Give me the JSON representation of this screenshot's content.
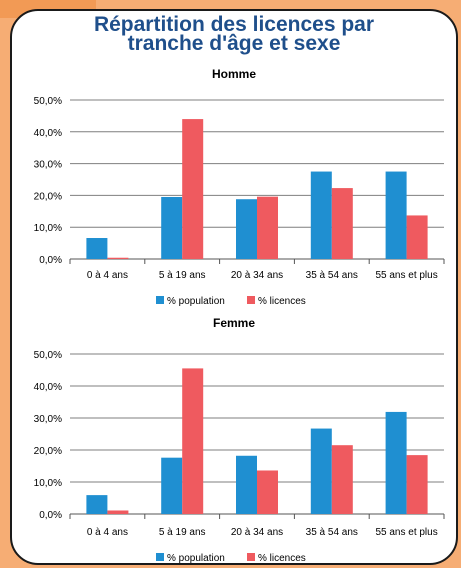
{
  "header": {
    "title_line1": "Répartition des licences par",
    "title_line2": "tranche d'âge et sexe"
  },
  "colors": {
    "population": "#1f8fd1",
    "licences": "#ef5a5f",
    "title": "#1f4f8b"
  },
  "chart_data": [
    {
      "type": "bar",
      "title": "Homme",
      "categories": [
        "0 à 4 ans",
        "5 à 19 ans",
        "20 à 34 ans",
        "35 à 54 ans",
        "55 ans et plus"
      ],
      "series": [
        {
          "name": "% population",
          "values": [
            6.6,
            19.5,
            18.8,
            27.5,
            27.5
          ]
        },
        {
          "name": "% licences",
          "values": [
            0.4,
            44.0,
            19.6,
            22.3,
            13.7
          ]
        }
      ],
      "yticks": [
        "0,0%",
        "10,0%",
        "20,0%",
        "30,0%",
        "40,0%",
        "50,0%"
      ],
      "ylim": [
        0,
        50
      ],
      "legend": "bottom",
      "grid": true
    },
    {
      "type": "bar",
      "title": "Femme",
      "categories": [
        "0 à 4 ans",
        "5 à 19 ans",
        "20 à 34 ans",
        "35 à 54 ans",
        "55 ans et plus"
      ],
      "series": [
        {
          "name": "% population",
          "values": [
            5.9,
            17.6,
            18.2,
            26.7,
            31.9
          ]
        },
        {
          "name": "% licences",
          "values": [
            1.1,
            45.5,
            13.6,
            21.5,
            18.4
          ]
        }
      ],
      "yticks": [
        "0,0%",
        "10,0%",
        "20,0%",
        "30,0%",
        "40,0%",
        "50,0%"
      ],
      "ylim": [
        0,
        50
      ],
      "legend": "bottom",
      "grid": true
    }
  ]
}
